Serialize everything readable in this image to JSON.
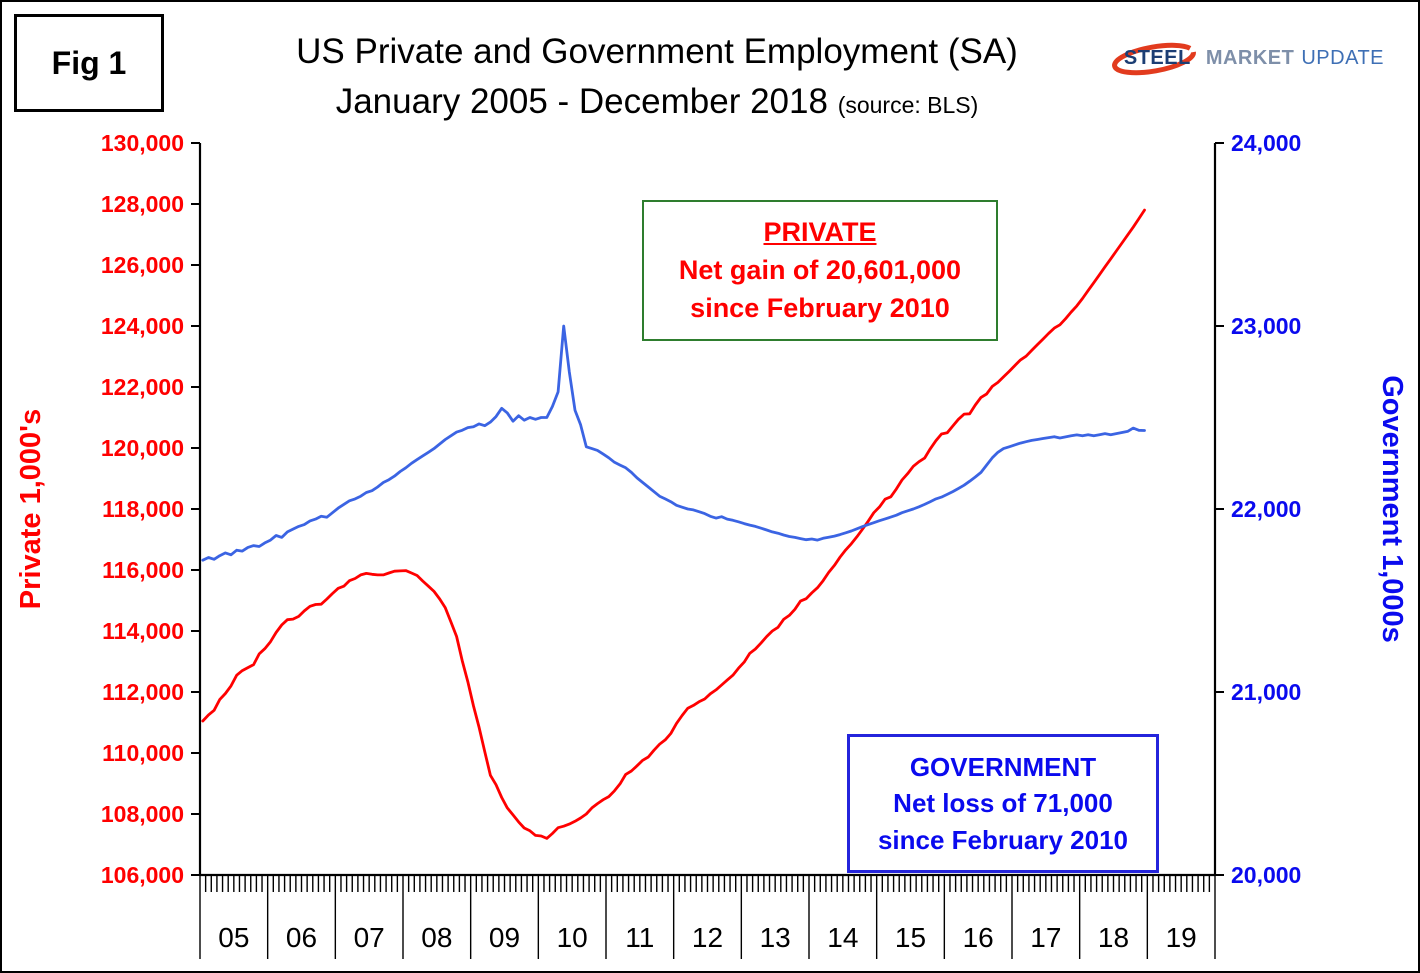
{
  "figure_label": "Fig 1",
  "title": {
    "line1": "US Private and Government Employment (SA)",
    "line2": "January 2005 - December 2018",
    "source": "(source: BLS)"
  },
  "logo": {
    "steel": "STEEL",
    "market": "MARKET",
    "update": "UPDATE"
  },
  "annotations": {
    "private": {
      "heading": "PRIVATE",
      "line1": "Net gain of 20,601,000",
      "line2": "since February 2010"
    },
    "government": {
      "heading": "GOVERNMENT",
      "line1": "Net loss of 71,000",
      "line2": "since February 2010"
    }
  },
  "colors": {
    "private": "#FF0000",
    "government_line": "#3B64E3",
    "government_text": "#0A0AEE",
    "private_box_border": "#2E7D2E",
    "government_box_border": "#2424DC",
    "axis": "#000000"
  },
  "chart_data": {
    "type": "line",
    "title": "US Private and Government Employment (SA), January 2005 - December 2018",
    "source": "BLS",
    "x_start": "2005-01",
    "x_end": "2018-12",
    "x_year_labels": [
      "05",
      "06",
      "07",
      "08",
      "09",
      "10",
      "11",
      "12",
      "13",
      "14",
      "15",
      "16",
      "17",
      "18",
      "19"
    ],
    "left_axis": {
      "label": "Private 1,000's",
      "min": 106000,
      "max": 130000,
      "step": 2000
    },
    "right_axis": {
      "label": "Government 1,000s",
      "min": 20000,
      "max": 24000,
      "step": 1000
    },
    "grid": false,
    "legend": "none",
    "series": [
      {
        "name": "Private",
        "axis": "left",
        "color": "#FF0000",
        "monthly_values": [
          111050,
          111250,
          111400,
          111750,
          111950,
          112200,
          112550,
          112700,
          112800,
          112900,
          113250,
          113420,
          113650,
          113950,
          114200,
          114370,
          114390,
          114480,
          114660,
          114810,
          114870,
          114880,
          115050,
          115230,
          115400,
          115470,
          115650,
          115720,
          115840,
          115890,
          115860,
          115840,
          115840,
          115900,
          115960,
          115970,
          115980,
          115900,
          115820,
          115640,
          115470,
          115300,
          115050,
          114760,
          114300,
          113820,
          113030,
          112340,
          111540,
          110840,
          110040,
          109270,
          108960,
          108540,
          108200,
          107970,
          107740,
          107540,
          107450,
          107300,
          107280,
          107200,
          107360,
          107550,
          107600,
          107670,
          107760,
          107870,
          108000,
          108200,
          108340,
          108470,
          108570,
          108760,
          108990,
          109300,
          109410,
          109580,
          109760,
          109870,
          110090,
          110290,
          110430,
          110640,
          110970,
          111230,
          111470,
          111560,
          111680,
          111770,
          111940,
          112070,
          112230,
          112390,
          112550,
          112780,
          112980,
          113270,
          113410,
          113610,
          113820,
          114000,
          114120,
          114380,
          114510,
          114710,
          114980,
          115060,
          115250,
          115420,
          115650,
          115920,
          116150,
          116420,
          116660,
          116860,
          117090,
          117340,
          117600,
          117880,
          118070,
          118320,
          118400,
          118660,
          118950,
          119160,
          119400,
          119550,
          119670,
          119970,
          120240,
          120460,
          120500,
          120720,
          120940,
          121110,
          121120,
          121410,
          121660,
          121770,
          122020,
          122150,
          122330,
          122510,
          122700,
          122890,
          123010,
          123200,
          123390,
          123570,
          123760,
          123930,
          124040,
          124240,
          124460,
          124660,
          124900,
          125160,
          125420,
          125680,
          125940,
          126200,
          126460,
          126720,
          126980,
          127240,
          127520,
          127800
        ]
      },
      {
        "name": "Government",
        "axis": "right",
        "color": "#3B64E3",
        "monthly_values": [
          21720,
          21735,
          21725,
          21745,
          21760,
          21750,
          21775,
          21770,
          21790,
          21800,
          21795,
          21815,
          21830,
          21855,
          21845,
          21875,
          21890,
          21905,
          21915,
          21935,
          21945,
          21960,
          21955,
          21980,
          22005,
          22025,
          22045,
          22055,
          22070,
          22090,
          22100,
          22120,
          22145,
          22160,
          22180,
          22205,
          22225,
          22250,
          22270,
          22290,
          22310,
          22330,
          22355,
          22380,
          22400,
          22420,
          22430,
          22445,
          22450,
          22465,
          22455,
          22475,
          22505,
          22550,
          22525,
          22480,
          22510,
          22485,
          22500,
          22490,
          22500,
          22500,
          22560,
          22640,
          23000,
          22750,
          22540,
          22460,
          22340,
          22330,
          22320,
          22300,
          22280,
          22255,
          22240,
          22225,
          22200,
          22170,
          22145,
          22120,
          22095,
          22070,
          22055,
          22040,
          22020,
          22010,
          22000,
          21995,
          21985,
          21975,
          21960,
          21950,
          21958,
          21945,
          21938,
          21930,
          21920,
          21912,
          21905,
          21895,
          21885,
          21875,
          21868,
          21858,
          21850,
          21845,
          21838,
          21832,
          21836,
          21830,
          21840,
          21846,
          21852,
          21860,
          21870,
          21880,
          21892,
          21904,
          21915,
          21925,
          21936,
          21946,
          21956,
          21966,
          21980,
          21990,
          22000,
          22012,
          22025,
          22040,
          22055,
          22065,
          22080,
          22095,
          22112,
          22130,
          22152,
          22175,
          22200,
          22240,
          22280,
          22310,
          22330,
          22340,
          22350,
          22360,
          22368,
          22375,
          22380,
          22385,
          22390,
          22395,
          22388,
          22394,
          22400,
          22405,
          22400,
          22406,
          22400,
          22406,
          22412,
          22406,
          22412,
          22418,
          22424,
          22442,
          22430,
          22429
        ]
      }
    ]
  }
}
